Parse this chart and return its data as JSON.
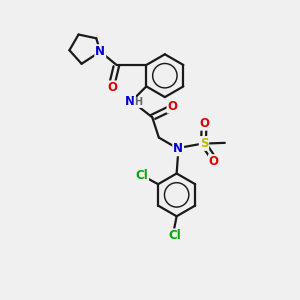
{
  "bg_color": "#f0f0f0",
  "bond_color": "#1a1a1a",
  "bond_width": 1.6,
  "atom_colors": {
    "N": "#0000cc",
    "O": "#dd0000",
    "S": "#bbbb00",
    "Cl": "#00aa00",
    "H": "#666666",
    "C": "#1a1a1a"
  },
  "font_size_atom": 8.5,
  "font_size_small": 7.0
}
